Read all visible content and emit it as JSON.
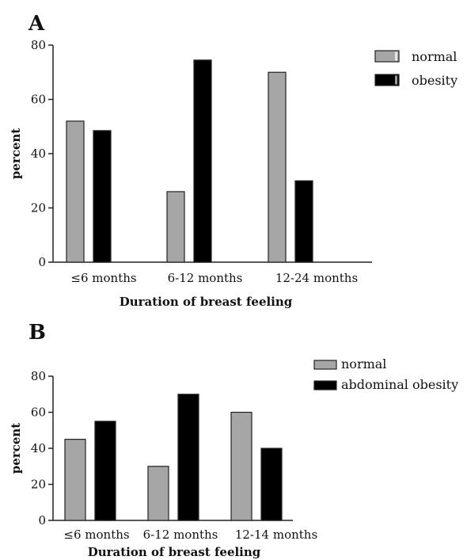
{
  "chart_data": [
    {
      "panel": "A",
      "type": "bar",
      "categories": [
        "≤6 months",
        "6-12 months",
        "12-24 months"
      ],
      "series": [
        {
          "name": "normal",
          "values": [
            52,
            26,
            70
          ],
          "color": "#a6a6a6"
        },
        {
          "name": "obesity",
          "values": [
            48.5,
            74.5,
            30
          ],
          "color": "#000000"
        }
      ],
      "xlabel": "Duration of breast feeling",
      "ylabel": "percent",
      "ylim": [
        0,
        80
      ],
      "yticks": [
        0,
        20,
        40,
        60,
        80
      ],
      "legend_position": "top-right",
      "grid": false
    },
    {
      "panel": "B",
      "type": "bar",
      "categories": [
        "≤6 months",
        "6-12 months",
        "12-14 months"
      ],
      "series": [
        {
          "name": "normal",
          "values": [
            45,
            30,
            60
          ],
          "color": "#a6a6a6"
        },
        {
          "name": "abdominal obesity",
          "values": [
            55,
            70,
            40
          ],
          "color": "#000000"
        }
      ],
      "xlabel": "Duration of breast feeling",
      "ylabel": "percent",
      "ylim": [
        0,
        80
      ],
      "yticks": [
        0,
        20,
        40,
        60,
        80
      ],
      "legend_position": "top-right",
      "grid": false
    }
  ]
}
